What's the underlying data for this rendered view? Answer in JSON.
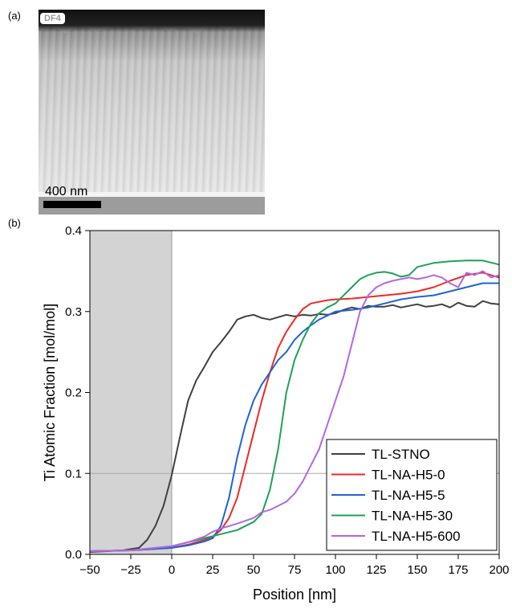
{
  "panel_a": {
    "label": "(a)",
    "badge": "DF4",
    "scale_bar": "400 nm"
  },
  "panel_b": {
    "label": "(b)"
  },
  "chart_data": {
    "type": "line",
    "title": "",
    "xlabel": "Position [nm]",
    "ylabel": "Ti Atomic Fraction [mol/mol]",
    "xlim": [
      -50,
      200
    ],
    "ylim": [
      0.0,
      0.4
    ],
    "xticks": [
      -50,
      -25,
      0,
      25,
      50,
      75,
      100,
      125,
      150,
      175,
      200
    ],
    "yticks": [
      0.0,
      0.1,
      0.2,
      0.3,
      0.4
    ],
    "xtick_labels": [
      "−50",
      "−25",
      "0",
      "25",
      "50",
      "75",
      "100",
      "125",
      "150",
      "175",
      "200"
    ],
    "ytick_labels": [
      "0.0",
      "0.1",
      "0.2",
      "0.3",
      "0.4"
    ],
    "shaded_region_x": [
      -50,
      0
    ],
    "reference_line_y": 0.1,
    "legend_position": "bottom-right",
    "series": [
      {
        "name": "TL-STNO",
        "color": "#404040",
        "x": [
          -50,
          -40,
          -30,
          -20,
          -15,
          -10,
          -5,
          0,
          5,
          10,
          15,
          20,
          25,
          30,
          35,
          40,
          45,
          50,
          55,
          60,
          65,
          70,
          75,
          80,
          85,
          90,
          95,
          100,
          105,
          110,
          115,
          120,
          125,
          130,
          135,
          140,
          145,
          150,
          155,
          160,
          165,
          170,
          175,
          180,
          185,
          190,
          195,
          200
        ],
        "y": [
          0.003,
          0.004,
          0.005,
          0.008,
          0.018,
          0.035,
          0.06,
          0.098,
          0.145,
          0.19,
          0.215,
          0.232,
          0.25,
          0.262,
          0.275,
          0.29,
          0.294,
          0.296,
          0.292,
          0.29,
          0.293,
          0.296,
          0.294,
          0.296,
          0.295,
          0.297,
          0.296,
          0.298,
          0.302,
          0.305,
          0.303,
          0.307,
          0.306,
          0.306,
          0.308,
          0.305,
          0.307,
          0.309,
          0.306,
          0.307,
          0.309,
          0.305,
          0.311,
          0.307,
          0.306,
          0.313,
          0.31,
          0.309
        ]
      },
      {
        "name": "TL-NA-H5-0",
        "color": "#ee2a24",
        "x": [
          -50,
          -25,
          0,
          10,
          20,
          25,
          30,
          35,
          40,
          45,
          50,
          55,
          60,
          65,
          70,
          75,
          80,
          85,
          90,
          95,
          100,
          110,
          120,
          130,
          140,
          150,
          160,
          170,
          180,
          190,
          200
        ],
        "y": [
          0.004,
          0.005,
          0.008,
          0.012,
          0.018,
          0.022,
          0.03,
          0.045,
          0.07,
          0.11,
          0.15,
          0.19,
          0.225,
          0.255,
          0.275,
          0.29,
          0.303,
          0.31,
          0.312,
          0.314,
          0.315,
          0.316,
          0.318,
          0.32,
          0.322,
          0.325,
          0.33,
          0.338,
          0.345,
          0.348,
          0.342
        ]
      },
      {
        "name": "TL-NA-H5-5",
        "color": "#1f63d6",
        "x": [
          -50,
          -25,
          0,
          10,
          20,
          25,
          30,
          35,
          40,
          45,
          50,
          55,
          60,
          65,
          70,
          75,
          80,
          85,
          90,
          95,
          100,
          110,
          120,
          130,
          140,
          150,
          160,
          170,
          180,
          190,
          200
        ],
        "y": [
          0.004,
          0.005,
          0.008,
          0.011,
          0.016,
          0.02,
          0.035,
          0.07,
          0.12,
          0.16,
          0.19,
          0.21,
          0.225,
          0.24,
          0.25,
          0.265,
          0.275,
          0.283,
          0.29,
          0.295,
          0.3,
          0.302,
          0.305,
          0.31,
          0.315,
          0.318,
          0.32,
          0.325,
          0.33,
          0.335,
          0.335
        ]
      },
      {
        "name": "TL-NA-H5-30",
        "color": "#1fa05a",
        "x": [
          -50,
          -25,
          0,
          10,
          20,
          30,
          40,
          45,
          50,
          55,
          60,
          65,
          70,
          75,
          80,
          85,
          90,
          95,
          100,
          105,
          110,
          115,
          120,
          125,
          130,
          135,
          140,
          145,
          150,
          160,
          170,
          180,
          190,
          200
        ],
        "y": [
          0.004,
          0.005,
          0.01,
          0.015,
          0.02,
          0.025,
          0.03,
          0.035,
          0.04,
          0.05,
          0.08,
          0.13,
          0.2,
          0.24,
          0.265,
          0.285,
          0.298,
          0.305,
          0.31,
          0.32,
          0.33,
          0.34,
          0.345,
          0.348,
          0.349,
          0.347,
          0.343,
          0.345,
          0.355,
          0.36,
          0.362,
          0.363,
          0.363,
          0.358
        ]
      },
      {
        "name": "TL-NA-H5-600",
        "color": "#b266e8",
        "x": [
          -50,
          -25,
          0,
          10,
          20,
          25,
          30,
          40,
          50,
          55,
          60,
          65,
          70,
          75,
          80,
          85,
          90,
          95,
          100,
          105,
          110,
          115,
          120,
          125,
          130,
          135,
          140,
          145,
          150,
          155,
          160,
          165,
          170,
          175,
          180,
          185,
          190,
          195,
          200
        ],
        "y": [
          0.004,
          0.005,
          0.01,
          0.015,
          0.022,
          0.028,
          0.032,
          0.038,
          0.045,
          0.052,
          0.055,
          0.06,
          0.065,
          0.075,
          0.09,
          0.11,
          0.13,
          0.16,
          0.19,
          0.22,
          0.26,
          0.3,
          0.32,
          0.33,
          0.335,
          0.338,
          0.34,
          0.342,
          0.34,
          0.342,
          0.345,
          0.342,
          0.335,
          0.33,
          0.348,
          0.345,
          0.35,
          0.342,
          0.345
        ]
      }
    ]
  }
}
